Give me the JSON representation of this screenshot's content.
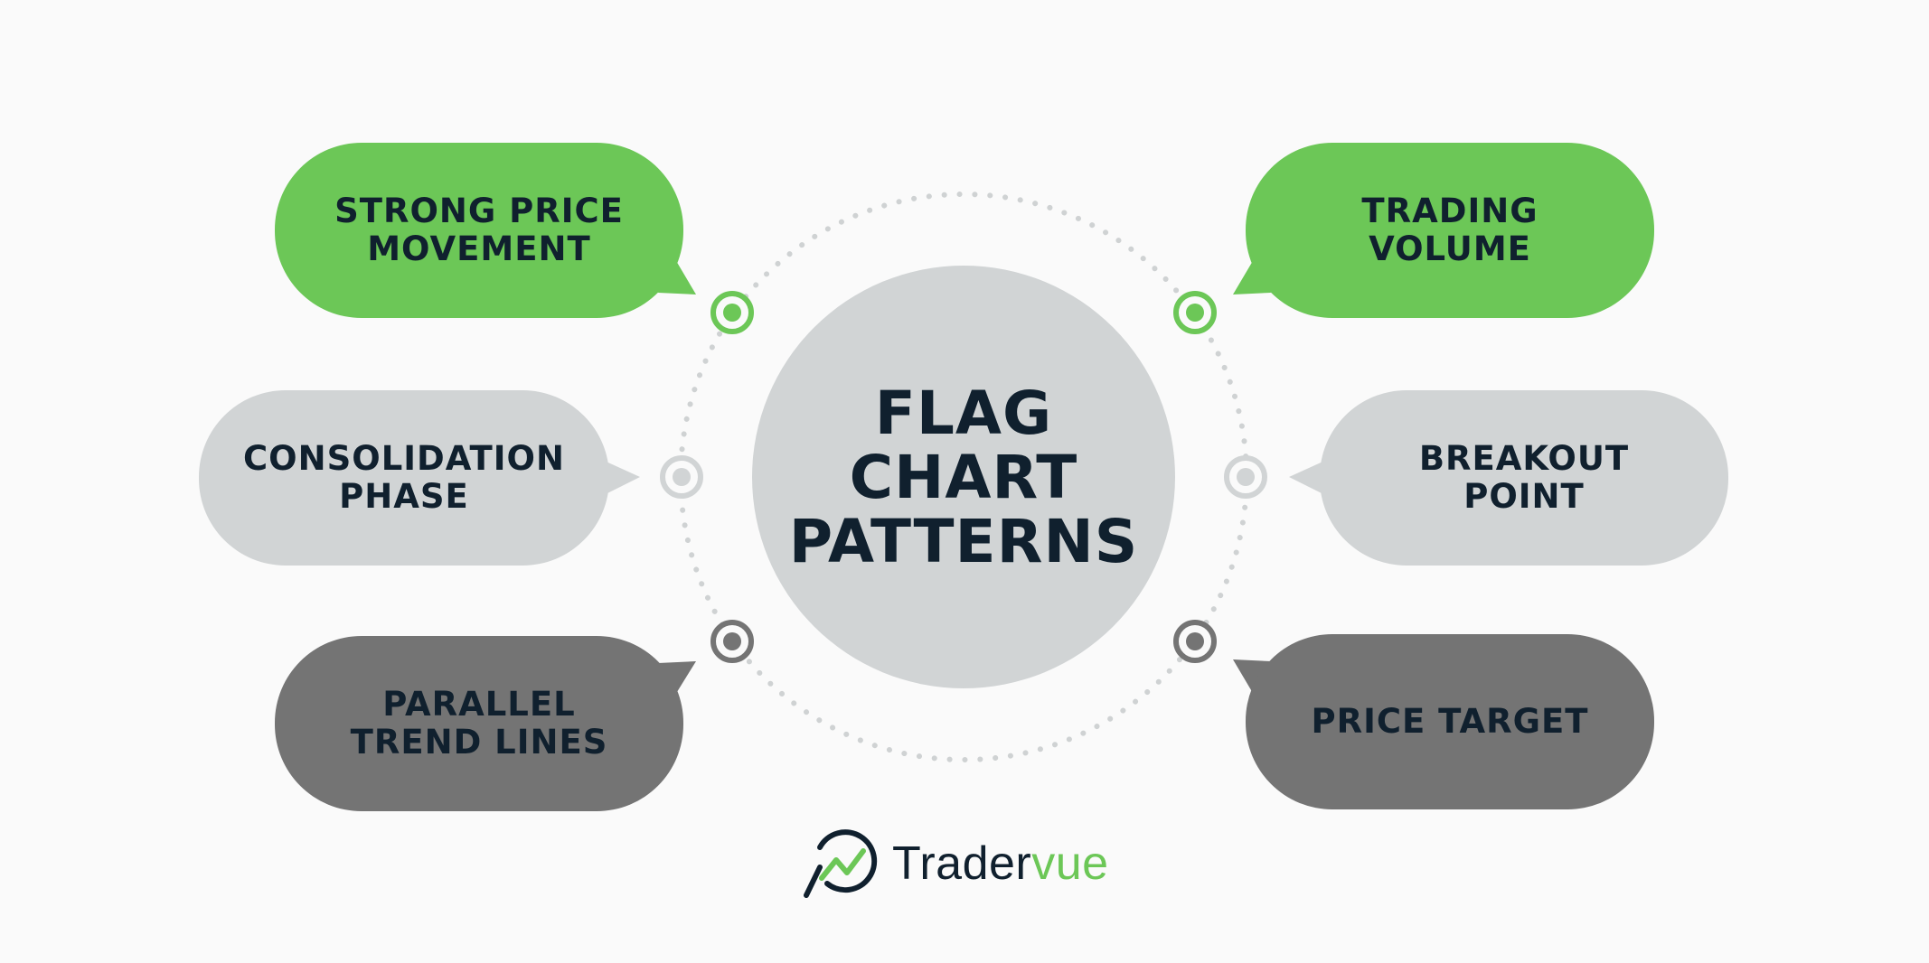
{
  "center": {
    "title": "FLAG\nCHART\nPATTERNS"
  },
  "bubbles": {
    "top_left": {
      "label": "STRONG PRICE\nMOVEMENT"
    },
    "top_right": {
      "label": "TRADING\nVOLUME"
    },
    "mid_left": {
      "label": "CONSOLIDATION\nPHASE"
    },
    "mid_right": {
      "label": "BREAKOUT\nPOINT"
    },
    "bottom_left": {
      "label": "PARALLEL\nTREND LINES"
    },
    "bottom_right": {
      "label": "PRICE TARGET"
    }
  },
  "brand": {
    "name_part1": "Trader",
    "name_part2": "vue"
  },
  "colors": {
    "green": "#6cc757",
    "light_gray": "#d1d4d5",
    "dark_gray": "#747474",
    "navy_text": "#10202e",
    "background": "#fafafa"
  },
  "icons": [
    "magnifier-chart-logo-icon"
  ]
}
